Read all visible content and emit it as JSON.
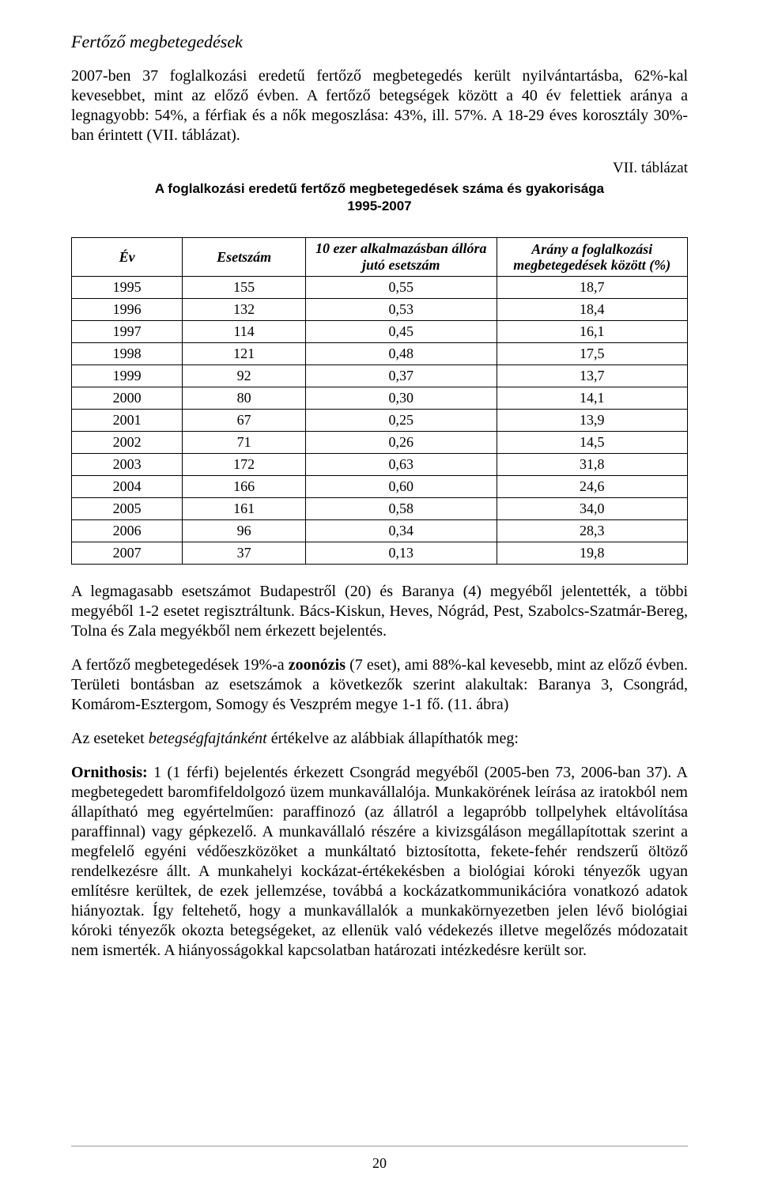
{
  "page": {
    "number": "20"
  },
  "section_title": "Fertőző megbetegedések",
  "para1": "2007-ben 37 foglalkozási eredetű fertőző megbetegedés került nyilvántartásba, 62%-kal kevesebbet, mint az előző évben. A fertőző betegségek között a 40 év felettiek aránya a legnagyobb: 54%, a férfiak és a nők megoszlása: 43%, ill. 57%. A 18-29 éves korosztály 30%-ban érintett (VII. táblázat).",
  "table_label": "VII. táblázat",
  "table_title_line1": "A foglalkozási eredetű fertőző megbetegedések száma és gyakorisága",
  "table_title_line2": "1995-2007",
  "table": {
    "columns": {
      "ev": "Év",
      "esetszam": "Esetszám",
      "per10k": "10 ezer alkalmazásban állóra jutó esetszám",
      "arany": "Arány a foglalkozási megbetegedések között (%)"
    },
    "rows": [
      {
        "ev": "1995",
        "esetszam": "155",
        "per10k": "0,55",
        "arany": "18,7"
      },
      {
        "ev": "1996",
        "esetszam": "132",
        "per10k": "0,53",
        "arany": "18,4"
      },
      {
        "ev": "1997",
        "esetszam": "114",
        "per10k": "0,45",
        "arany": "16,1"
      },
      {
        "ev": "1998",
        "esetszam": "121",
        "per10k": "0,48",
        "arany": "17,5"
      },
      {
        "ev": "1999",
        "esetszam": "92",
        "per10k": "0,37",
        "arany": "13,7"
      },
      {
        "ev": "2000",
        "esetszam": "80",
        "per10k": "0,30",
        "arany": "14,1"
      },
      {
        "ev": "2001",
        "esetszam": "67",
        "per10k": "0,25",
        "arany": "13,9"
      },
      {
        "ev": "2002",
        "esetszam": "71",
        "per10k": "0,26",
        "arany": "14,5"
      },
      {
        "ev": "2003",
        "esetszam": "172",
        "per10k": "0,63",
        "arany": "31,8"
      },
      {
        "ev": "2004",
        "esetszam": "166",
        "per10k": "0,60",
        "arany": "24,6"
      },
      {
        "ev": "2005",
        "esetszam": "161",
        "per10k": "0,58",
        "arany": "34,0"
      },
      {
        "ev": "2006",
        "esetszam": "96",
        "per10k": "0,34",
        "arany": "28,3"
      },
      {
        "ev": "2007",
        "esetszam": "37",
        "per10k": "0,13",
        "arany": "19,8"
      }
    ],
    "col_widths": [
      "18%",
      "20%",
      "31%",
      "31%"
    ],
    "border_color": "#000000",
    "header_fontstyle": "italic-bold",
    "cell_align": "center"
  },
  "para2": "A legmagasabb esetszámot Budapestről (20) és Baranya (4) megyéből jelentették, a többi megyéből 1-2 esetet regisztráltunk. Bács-Kiskun, Heves, Nógrád, Pest, Szabolcs-Szatmár-Bereg, Tolna és Zala megyékből nem érkezett bejelentés.",
  "para3_pre": "A fertőző megbetegedések 19%-a ",
  "para3_bold": "zoonózis",
  "para3_post": " (7 eset), ami 88%-kal kevesebb, mint az előző évben. Területi bontásban az esetszámok a következők szerint alakultak: Baranya 3, Csongrád, Komárom-Esztergom, Somogy és Veszprém megye 1-1 fő. (11. ábra)",
  "para4_pre": "Az eseteket ",
  "para4_italic": "betegségfajtánként",
  "para4_post": " értékelve az alábbiak állapíthatók meg:",
  "para5_bold": "Ornithosis:",
  "para5_post": " 1 (1 férfi) bejelentés érkezett Csongrád megyéből (2005-ben 73, 2006-ban 37). A megbetegedett baromfifeldolgozó üzem munkavállalója. Munkakörének leírása az iratokból nem állapítható meg egyértelműen: paraffinozó (az állatról a legapróbb tollpelyhek eltávolítása paraffinnal) vagy gépkezelő. A munkavállaló részére a kivizsgáláson megállapítottak szerint a megfelelő egyéni védőeszközöket a munkáltató biztosította, fekete-fehér rendszerű öltöző rendelkezésre állt. A munkahelyi kockázat-értékekésben a biológiai kóroki tényezők ugyan említésre kerültek, de ezek jellemzése, továbbá a kockázatkommunikációra vonatkozó adatok hiányoztak. Így feltehető, hogy a munkavállalók a munkakörnyezetben jelen lévő biológiai kóroki tényezők okozta betegségeket, az ellenük való védekezés illetve megelőzés módozatait nem ismerték. A hiányosságokkal kapcsolatban határozati intézkedésre került sor."
}
